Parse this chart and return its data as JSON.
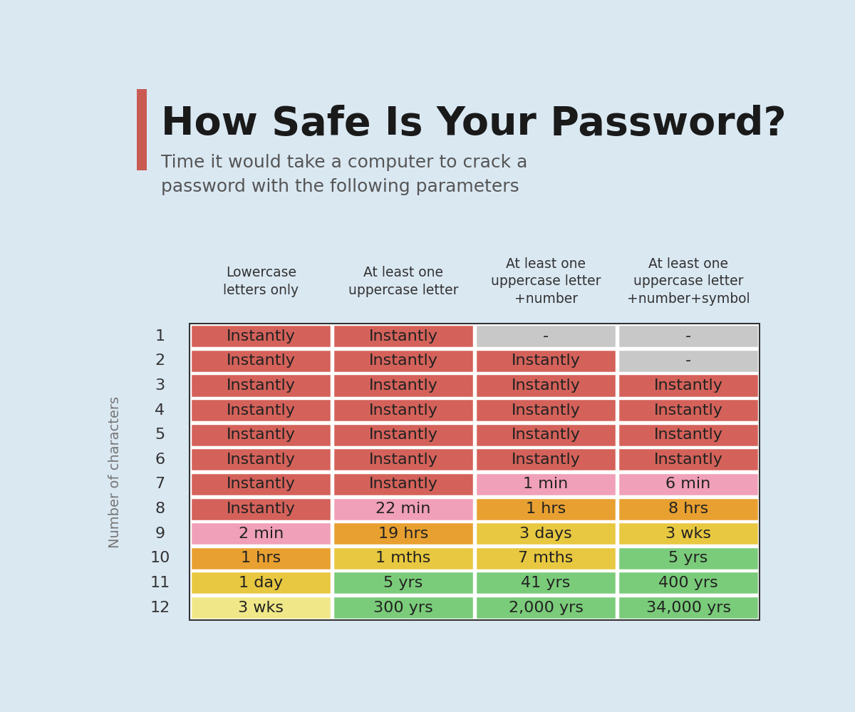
{
  "title": "How Safe Is Your Password?",
  "subtitle": "Time it would take a computer to crack a\npassword with the following parameters",
  "background_color": "#dae8f2",
  "col_headers": [
    "Lowercase\nletters only",
    "At least one\nuppercase letter",
    "At least one\nuppercase letter\n+number",
    "At least one\nuppercase letter\n+number+symbol"
  ],
  "row_labels": [
    "1",
    "2",
    "3",
    "4",
    "5",
    "6",
    "7",
    "8",
    "9",
    "10",
    "11",
    "12"
  ],
  "table_data": [
    [
      "Instantly",
      "Instantly",
      "-",
      "-"
    ],
    [
      "Instantly",
      "Instantly",
      "Instantly",
      "-"
    ],
    [
      "Instantly",
      "Instantly",
      "Instantly",
      "Instantly"
    ],
    [
      "Instantly",
      "Instantly",
      "Instantly",
      "Instantly"
    ],
    [
      "Instantly",
      "Instantly",
      "Instantly",
      "Instantly"
    ],
    [
      "Instantly",
      "Instantly",
      "Instantly",
      "Instantly"
    ],
    [
      "Instantly",
      "Instantly",
      "1 min",
      "6 min"
    ],
    [
      "Instantly",
      "22 min",
      "1 hrs",
      "8 hrs"
    ],
    [
      "2 min",
      "19 hrs",
      "3 days",
      "3 wks"
    ],
    [
      "1 hrs",
      "1 mths",
      "7 mths",
      "5 yrs"
    ],
    [
      "1 day",
      "5 yrs",
      "41 yrs",
      "400 yrs"
    ],
    [
      "3 wks",
      "300 yrs",
      "2,000 yrs",
      "34,000 yrs"
    ]
  ],
  "cell_colors": [
    [
      "#d4625a",
      "#d4625a",
      "#c8c8c8",
      "#c8c8c8"
    ],
    [
      "#d4625a",
      "#d4625a",
      "#d4625a",
      "#c8c8c8"
    ],
    [
      "#d4625a",
      "#d4625a",
      "#d4625a",
      "#d4625a"
    ],
    [
      "#d4625a",
      "#d4625a",
      "#d4625a",
      "#d4625a"
    ],
    [
      "#d4625a",
      "#d4625a",
      "#d4625a",
      "#d4625a"
    ],
    [
      "#d4625a",
      "#d4625a",
      "#d4625a",
      "#d4625a"
    ],
    [
      "#d4625a",
      "#d4625a",
      "#f0a0b8",
      "#f0a0b8"
    ],
    [
      "#d4625a",
      "#f0a0b8",
      "#e8a030",
      "#e8a030"
    ],
    [
      "#f0a0b8",
      "#e8a030",
      "#e8c840",
      "#e8c840"
    ],
    [
      "#e8a030",
      "#e8c840",
      "#e8c840",
      "#7acc7a"
    ],
    [
      "#e8c840",
      "#7acc7a",
      "#7acc7a",
      "#7acc7a"
    ],
    [
      "#f0e888",
      "#7acc7a",
      "#7acc7a",
      "#7acc7a"
    ]
  ],
  "red_bar_color": "#c95a52",
  "title_color": "#1a1a1a",
  "subtitle_color": "#555555",
  "ylabel": "Number of characters",
  "row_label_color": "#777777",
  "border_color": "#333333"
}
